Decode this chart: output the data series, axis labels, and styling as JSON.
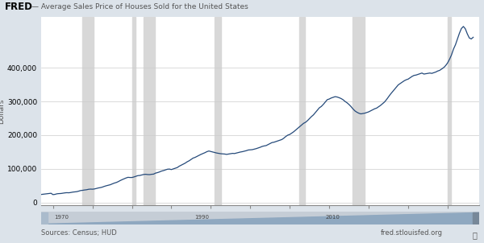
{
  "title": "— Average Sales Price of Houses Sold for the United States",
  "ylabel": "Dollars",
  "source_left": "Sources: Census; HUD",
  "source_right": "fred.stlouisfed.org",
  "line_color": "#254a7a",
  "background_color": "#dce3ea",
  "plot_bg_color": "#ffffff",
  "grid_color": "#cccccc",
  "recession_color": "#d8d8d8",
  "xlim": [
    1968.5,
    2024.0
  ],
  "ylim": [
    -8000,
    550000
  ],
  "yticks": [
    0,
    100000,
    200000,
    300000,
    400000
  ],
  "xticks": [
    1970,
    1975,
    1980,
    1985,
    1990,
    1995,
    2000,
    2005,
    2010,
    2015,
    2020
  ],
  "recession_bands": [
    [
      1973.75,
      1975.17
    ],
    [
      1980.0,
      1980.5
    ],
    [
      1981.5,
      1982.92
    ],
    [
      1990.5,
      1991.25
    ],
    [
      2001.25,
      2001.92
    ],
    [
      2007.92,
      2009.5
    ],
    [
      2020.0,
      2020.42
    ]
  ],
  "years": [
    1968.25,
    1968.5,
    1968.75,
    1969.0,
    1969.25,
    1969.5,
    1969.75,
    1970.0,
    1970.25,
    1970.5,
    1970.75,
    1971.0,
    1971.25,
    1971.5,
    1971.75,
    1972.0,
    1972.25,
    1972.5,
    1972.75,
    1973.0,
    1973.25,
    1973.5,
    1973.75,
    1974.0,
    1974.25,
    1974.5,
    1974.75,
    1975.0,
    1975.25,
    1975.5,
    1975.75,
    1976.0,
    1976.25,
    1976.5,
    1976.75,
    1977.0,
    1977.25,
    1977.5,
    1977.75,
    1978.0,
    1978.25,
    1978.5,
    1978.75,
    1979.0,
    1979.25,
    1979.5,
    1979.75,
    1980.0,
    1980.25,
    1980.5,
    1980.75,
    1981.0,
    1981.25,
    1981.5,
    1981.75,
    1982.0,
    1982.25,
    1982.5,
    1982.75,
    1983.0,
    1983.25,
    1983.5,
    1983.75,
    1984.0,
    1984.25,
    1984.5,
    1984.75,
    1985.0,
    1985.25,
    1985.5,
    1985.75,
    1986.0,
    1986.25,
    1986.5,
    1986.75,
    1987.0,
    1987.25,
    1987.5,
    1987.75,
    1988.0,
    1988.25,
    1988.5,
    1988.75,
    1989.0,
    1989.25,
    1989.5,
    1989.75,
    1990.0,
    1990.25,
    1990.5,
    1990.75,
    1991.0,
    1991.25,
    1991.5,
    1991.75,
    1992.0,
    1992.25,
    1992.5,
    1992.75,
    1993.0,
    1993.25,
    1993.5,
    1993.75,
    1994.0,
    1994.25,
    1994.5,
    1994.75,
    1995.0,
    1995.25,
    1995.5,
    1995.75,
    1996.0,
    1996.25,
    1996.5,
    1996.75,
    1997.0,
    1997.25,
    1997.5,
    1997.75,
    1998.0,
    1998.25,
    1998.5,
    1998.75,
    1999.0,
    1999.25,
    1999.5,
    1999.75,
    2000.0,
    2000.25,
    2000.5,
    2000.75,
    2001.0,
    2001.25,
    2001.5,
    2001.75,
    2002.0,
    2002.25,
    2002.5,
    2002.75,
    2003.0,
    2003.25,
    2003.5,
    2003.75,
    2004.0,
    2004.25,
    2004.5,
    2004.75,
    2005.0,
    2005.25,
    2005.5,
    2005.75,
    2006.0,
    2006.25,
    2006.5,
    2006.75,
    2007.0,
    2007.25,
    2007.5,
    2007.75,
    2008.0,
    2008.25,
    2008.5,
    2008.75,
    2009.0,
    2009.25,
    2009.5,
    2009.75,
    2010.0,
    2010.25,
    2010.5,
    2010.75,
    2011.0,
    2011.25,
    2011.5,
    2011.75,
    2012.0,
    2012.25,
    2012.5,
    2012.75,
    2013.0,
    2013.25,
    2013.5,
    2013.75,
    2014.0,
    2014.25,
    2014.5,
    2014.75,
    2015.0,
    2015.25,
    2015.5,
    2015.75,
    2016.0,
    2016.25,
    2016.5,
    2016.75,
    2017.0,
    2017.25,
    2017.5,
    2017.75,
    2018.0,
    2018.25,
    2018.5,
    2018.75,
    2019.0,
    2019.25,
    2019.5,
    2019.75,
    2020.0,
    2020.25,
    2020.5,
    2020.75,
    2021.0,
    2021.25,
    2021.5,
    2021.75,
    2022.0,
    2022.25,
    2022.5,
    2022.75,
    2023.0,
    2023.25
  ],
  "prices": [
    23500,
    24200,
    25100,
    25800,
    26200,
    27000,
    27800,
    23800,
    24500,
    26200,
    26800,
    27100,
    28000,
    28900,
    29500,
    29200,
    30000,
    31200,
    31800,
    32500,
    34000,
    35800,
    36500,
    37500,
    38200,
    39500,
    40100,
    39800,
    40500,
    42000,
    43500,
    44500,
    46000,
    48200,
    50000,
    51500,
    53000,
    55500,
    57800,
    59500,
    62000,
    65200,
    68000,
    70500,
    73000,
    75000,
    74500,
    74500,
    76000,
    78000,
    80000,
    80500,
    82000,
    83500,
    84000,
    83200,
    83000,
    84000,
    84500,
    87500,
    89000,
    91000,
    93500,
    95000,
    97000,
    99000,
    99500,
    98000,
    100000,
    102000,
    104000,
    108000,
    111000,
    114000,
    117000,
    121000,
    124000,
    128000,
    132000,
    134000,
    137000,
    140000,
    143000,
    145500,
    148000,
    151000,
    153000,
    151500,
    150000,
    148500,
    147000,
    146000,
    145000,
    144500,
    144000,
    143000,
    144000,
    145000,
    146000,
    145500,
    147000,
    148500,
    150000,
    151000,
    152500,
    154000,
    156000,
    156500,
    157000,
    158500,
    160000,
    162000,
    164000,
    166500,
    168000,
    169000,
    172000,
    175000,
    178000,
    179000,
    181000,
    183000,
    185000,
    187000,
    191000,
    196000,
    200000,
    202000,
    206000,
    210000,
    215000,
    220000,
    225000,
    230000,
    235000,
    238000,
    243000,
    249000,
    255000,
    260000,
    267000,
    274000,
    281000,
    285000,
    291000,
    298000,
    305000,
    307000,
    310000,
    312000,
    314000,
    313000,
    311000,
    308500,
    305000,
    300000,
    296000,
    291000,
    285000,
    278000,
    272000,
    268000,
    265000,
    263000,
    264000,
    265000,
    267000,
    269000,
    272000,
    275000,
    278000,
    280000,
    284000,
    288000,
    293000,
    298000,
    305000,
    313000,
    321000,
    328000,
    335000,
    342000,
    349000,
    353000,
    357000,
    361000,
    364000,
    366000,
    370000,
    374000,
    377000,
    378000,
    380000,
    382000,
    384000,
    381000,
    382000,
    383000,
    384000,
    383000,
    385000,
    387000,
    390000,
    392000,
    396000,
    400000,
    406000,
    414000,
    425000,
    438000,
    455000,
    468000,
    485000,
    502000,
    516000,
    522000,
    515000,
    500000,
    488000,
    485000,
    490000
  ]
}
